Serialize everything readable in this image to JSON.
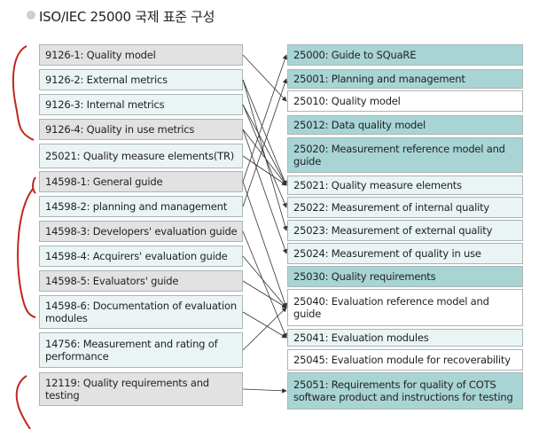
{
  "title": "ISO/IEC 25000 국제 표준 구성",
  "left": [
    {
      "label": "9126-1: Quality model",
      "style": "grey"
    },
    {
      "label": "9126-2: External metrics",
      "style": "pale"
    },
    {
      "label": "9126-3: Internal metrics",
      "style": "pale"
    },
    {
      "label": "9126-4: Quality in use metrics",
      "style": "grey"
    },
    {
      "label": "25021: Quality measure elements(TR)",
      "style": "pale"
    },
    {
      "label": "14598-1: General guide",
      "style": "grey"
    },
    {
      "label": "14598-2: planning and management",
      "style": "pale"
    },
    {
      "label": "14598-3: Developers' evaluation guide",
      "style": "grey"
    },
    {
      "label": "14598-4: Acquirers' evaluation guide",
      "style": "pale"
    },
    {
      "label": "14598-5: Evaluators' guide",
      "style": "grey"
    },
    {
      "label": "14598-6: Documentation of evaluation modules",
      "style": "pale"
    },
    {
      "label": "14756: Measurement and rating of performance",
      "style": "pale"
    },
    {
      "label": "12119: Quality requirements and testing",
      "style": "grey"
    }
  ],
  "right": [
    {
      "label": "25000: Guide to SQuaRE",
      "style": "teal"
    },
    {
      "label": "25001: Planning and management",
      "style": "teal"
    },
    {
      "label": "25010: Quality model",
      "style": "white"
    },
    {
      "label": "25012: Data quality model",
      "style": "teal"
    },
    {
      "label": "25020: Measurement reference model and guide",
      "style": "teal"
    },
    {
      "label": "25021: Quality measure elements",
      "style": "pale"
    },
    {
      "label": "25022: Measurement of internal quality",
      "style": "pale"
    },
    {
      "label": "25023: Measurement of external quality",
      "style": "pale"
    },
    {
      "label": "25024: Measurement of quality in use",
      "style": "pale"
    },
    {
      "label": "25030: Quality requirements",
      "style": "teal"
    },
    {
      "label": "25040: Evaluation reference model and guide",
      "style": "white"
    },
    {
      "label": "25041: Evaluation modules",
      "style": "pale"
    },
    {
      "label": "25045: Evaluation module for recoverability",
      "style": "white"
    },
    {
      "label": "25051: Requirements for quality of COTS software product and instructions for testing",
      "style": "teal"
    }
  ],
  "mappings": [
    [
      0,
      2
    ],
    [
      1,
      5
    ],
    [
      1,
      7
    ],
    [
      2,
      5
    ],
    [
      2,
      6
    ],
    [
      3,
      5
    ],
    [
      3,
      8
    ],
    [
      4,
      5
    ],
    [
      5,
      0
    ],
    [
      5,
      10
    ],
    [
      6,
      1
    ],
    [
      7,
      11
    ],
    [
      8,
      10
    ],
    [
      9,
      10
    ],
    [
      10,
      11
    ],
    [
      11,
      10
    ],
    [
      12,
      13
    ]
  ]
}
